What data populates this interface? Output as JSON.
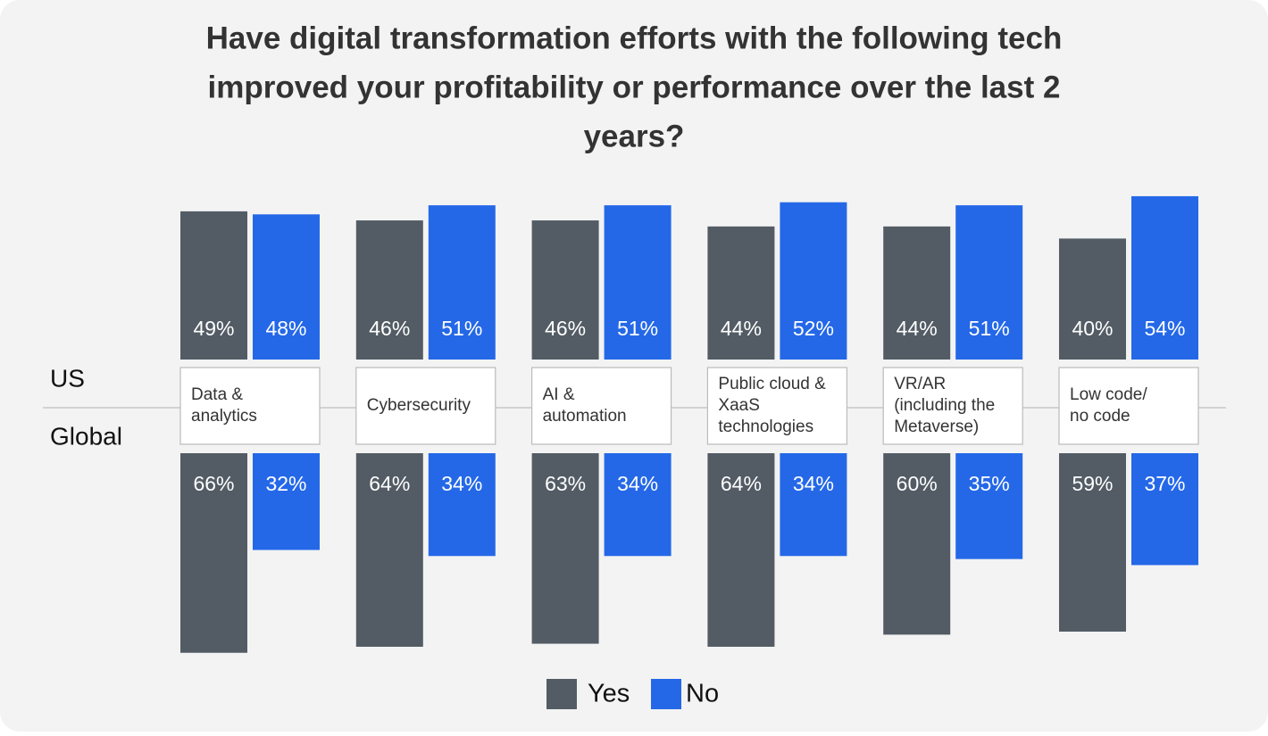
{
  "chart_data": {
    "type": "bar",
    "title": [
      "Have digital transformation efforts with the  following tech",
      "improved your profitability or performance over the last 2",
      "years?"
    ],
    "categories": [
      [
        "Data &",
        "analytics"
      ],
      [
        "Cybersecurity"
      ],
      [
        "AI &",
        "automation"
      ],
      [
        "Public cloud &",
        "XaaS",
        "technologies"
      ],
      [
        "VR/AR",
        "(including the",
        "Metaverse)"
      ],
      [
        "Low code/",
        "no code"
      ]
    ],
    "panels": [
      {
        "label": "US",
        "series": [
          {
            "name": "Yes",
            "color": "#535c65",
            "values": [
              49,
              46,
              46,
              44,
              44,
              40
            ],
            "value_labels": [
              "49%",
              "46%",
              "46%",
              "44%",
              "44%",
              "40%"
            ]
          },
          {
            "name": "No",
            "color": "#2468e8",
            "values": [
              48,
              51,
              51,
              52,
              51,
              54
            ],
            "value_labels": [
              "48%",
              "51%",
              "51%",
              "52%",
              "51%",
              "54%"
            ]
          }
        ]
      },
      {
        "label": "Global",
        "series": [
          {
            "color": "#535c65",
            "values": [
              66,
              64,
              63,
              64,
              60,
              59
            ],
            "value_labels": [
              "66%",
              "64%",
              "63%",
              "64%",
              "60%",
              "59%"
            ]
          },
          {
            "color": "#2468e8",
            "values": [
              32,
              34,
              34,
              34,
              35,
              37
            ],
            "value_labels": [
              "32%",
              "34%",
              "34%",
              "34%",
              "35%",
              "37%"
            ]
          }
        ]
      }
    ]
  }
}
